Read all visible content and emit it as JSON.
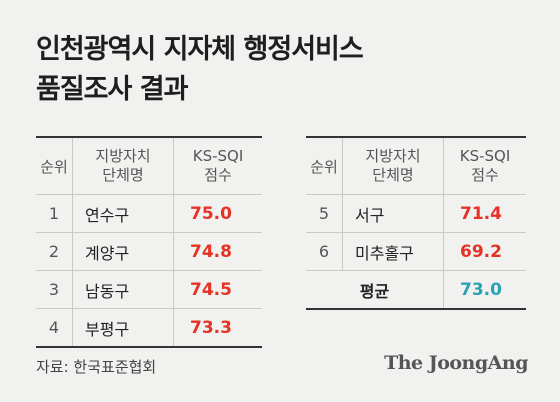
{
  "title": {
    "line1": "인천광역시 지자체 행정서비스",
    "line2": "품질조사 결과"
  },
  "colors": {
    "score": "#e53225",
    "average": "#2aa2b6"
  },
  "table": {
    "headers": {
      "rank": "순위",
      "name_line1": "지방자치",
      "name_line2": "단체명",
      "score_line1": "KS-SQI",
      "score_line2": "점수"
    },
    "left_rows": [
      {
        "rank": "1",
        "name": "연수구",
        "score": "75.0"
      },
      {
        "rank": "2",
        "name": "계양구",
        "score": "74.8"
      },
      {
        "rank": "3",
        "name": "남동구",
        "score": "74.5"
      },
      {
        "rank": "4",
        "name": "부평구",
        "score": "73.3"
      }
    ],
    "right_rows": [
      {
        "rank": "5",
        "name": "서구",
        "score": "71.4"
      },
      {
        "rank": "6",
        "name": "미추홀구",
        "score": "69.2"
      }
    ],
    "average": {
      "label": "평균",
      "score": "73.0"
    }
  },
  "chart_data": {
    "type": "table",
    "title": "인천광역시 지자체 행정서비스 품질조사 결과",
    "columns": [
      "순위",
      "지방자치 단체명",
      "KS-SQI 점수"
    ],
    "rows": [
      [
        "1",
        "연수구",
        75.0
      ],
      [
        "2",
        "계양구",
        74.8
      ],
      [
        "3",
        "남동구",
        74.5
      ],
      [
        "4",
        "부평구",
        73.3
      ],
      [
        "5",
        "서구",
        71.4
      ],
      [
        "6",
        "미추홀구",
        69.2
      ]
    ],
    "average": {
      "label": "평균",
      "value": 73.0
    }
  },
  "footer": {
    "source": "자료: 한국표준협회",
    "brand": "The JoongAng"
  }
}
